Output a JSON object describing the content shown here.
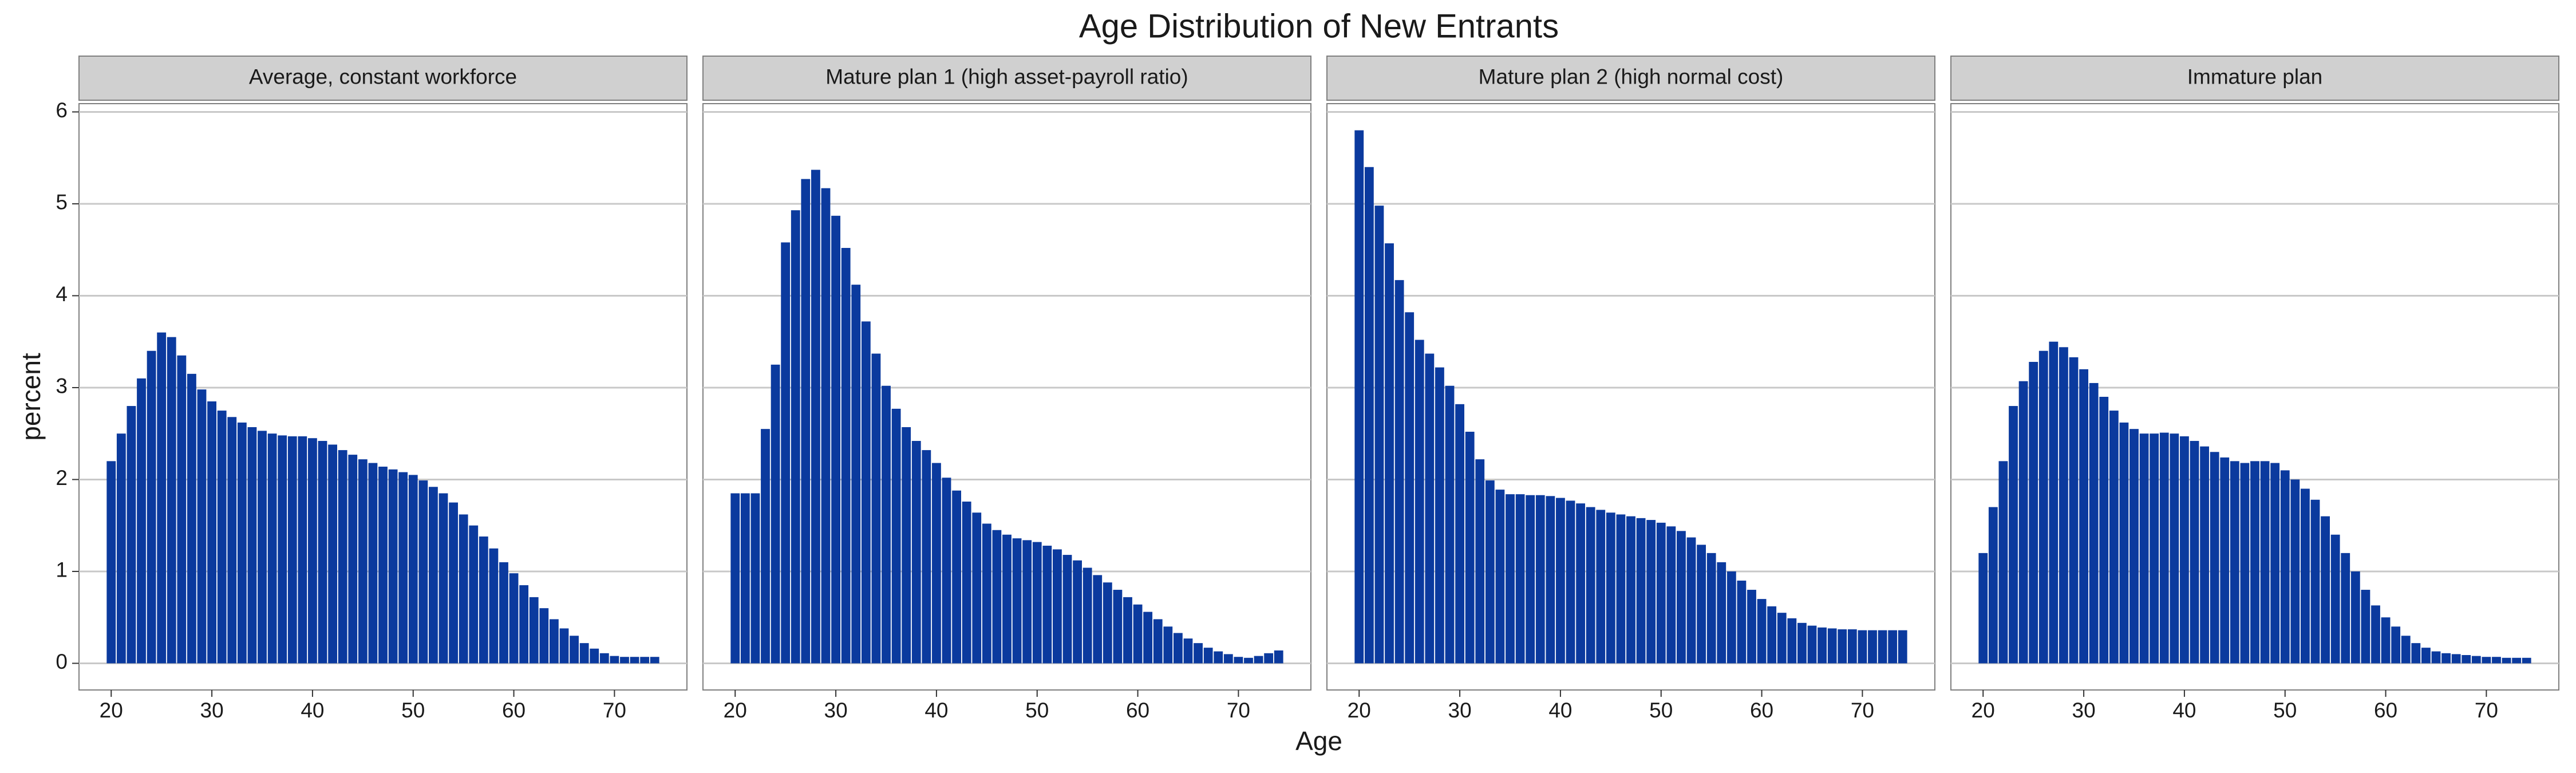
{
  "title": "Age Distribution of New Entrants",
  "xlabel": "Age",
  "ylabel": "percent",
  "chart_data": [
    {
      "type": "bar",
      "title": "Average, constant workforce",
      "color": "#0b3a9e",
      "grid": true,
      "x": [
        20,
        21,
        22,
        23,
        24,
        25,
        26,
        27,
        28,
        29,
        30,
        31,
        32,
        33,
        34,
        35,
        36,
        37,
        38,
        39,
        40,
        41,
        42,
        43,
        44,
        45,
        46,
        47,
        48,
        49,
        50,
        51,
        52,
        53,
        54,
        55,
        56,
        57,
        58,
        59,
        60,
        61,
        62,
        63,
        64,
        65,
        66,
        67,
        68,
        69,
        70,
        71,
        72,
        73,
        74
      ],
      "values": [
        2.2,
        2.5,
        2.8,
        3.1,
        3.4,
        3.6,
        3.55,
        3.35,
        3.15,
        2.98,
        2.85,
        2.75,
        2.68,
        2.62,
        2.57,
        2.53,
        2.5,
        2.48,
        2.47,
        2.47,
        2.45,
        2.42,
        2.38,
        2.32,
        2.27,
        2.22,
        2.18,
        2.14,
        2.11,
        2.08,
        2.05,
        1.99,
        1.92,
        1.85,
        1.75,
        1.62,
        1.5,
        1.38,
        1.25,
        1.1,
        0.98,
        0.85,
        0.72,
        0.6,
        0.48,
        0.38,
        0.3,
        0.22,
        0.16,
        0.11,
        0.08,
        0.07,
        0.07,
        0.07,
        0.07
      ],
      "xlim": [
        16.8,
        77.2
      ],
      "ylim": [
        -0.29,
        6.09
      ],
      "xticks": [
        20,
        30,
        40,
        50,
        60,
        70
      ],
      "yticks": [
        0,
        1,
        2,
        3,
        4,
        5,
        6
      ]
    },
    {
      "type": "bar",
      "title": "Mature plan 1 (high asset-payroll ratio)",
      "color": "#0b3a9e",
      "grid": true,
      "x": [
        20,
        21,
        22,
        23,
        24,
        25,
        26,
        27,
        28,
        29,
        30,
        31,
        32,
        33,
        34,
        35,
        36,
        37,
        38,
        39,
        40,
        41,
        42,
        43,
        44,
        45,
        46,
        47,
        48,
        49,
        50,
        51,
        52,
        53,
        54,
        55,
        56,
        57,
        58,
        59,
        60,
        61,
        62,
        63,
        64,
        65,
        66,
        67,
        68,
        69,
        70,
        71,
        72,
        73,
        74
      ],
      "values": [
        1.85,
        1.85,
        1.85,
        2.55,
        3.25,
        4.58,
        4.93,
        5.27,
        5.37,
        5.17,
        4.87,
        4.52,
        4.12,
        3.72,
        3.37,
        3.02,
        2.77,
        2.57,
        2.42,
        2.32,
        2.18,
        2.02,
        1.88,
        1.76,
        1.64,
        1.52,
        1.45,
        1.4,
        1.36,
        1.34,
        1.32,
        1.28,
        1.24,
        1.18,
        1.12,
        1.04,
        0.96,
        0.88,
        0.8,
        0.72,
        0.64,
        0.56,
        0.48,
        0.4,
        0.33,
        0.27,
        0.22,
        0.17,
        0.13,
        0.1,
        0.07,
        0.06,
        0.08,
        0.11,
        0.14
      ],
      "xlim": [
        16.8,
        77.2
      ],
      "ylim": [
        -0.29,
        6.09
      ],
      "xticks": [
        20,
        30,
        40,
        50,
        60,
        70
      ],
      "yticks": [
        0,
        1,
        2,
        3,
        4,
        5,
        6
      ]
    },
    {
      "type": "bar",
      "title": "Mature plan 2 (high normal cost)",
      "color": "#0b3a9e",
      "grid": true,
      "x": [
        20,
        21,
        22,
        23,
        24,
        25,
        26,
        27,
        28,
        29,
        30,
        31,
        32,
        33,
        34,
        35,
        36,
        37,
        38,
        39,
        40,
        41,
        42,
        43,
        44,
        45,
        46,
        47,
        48,
        49,
        50,
        51,
        52,
        53,
        54,
        55,
        56,
        57,
        58,
        59,
        60,
        61,
        62,
        63,
        64,
        65,
        66,
        67,
        68,
        69,
        70,
        71,
        72,
        73,
        74
      ],
      "values": [
        5.8,
        5.4,
        4.98,
        4.57,
        4.17,
        3.82,
        3.52,
        3.37,
        3.22,
        3.02,
        2.82,
        2.52,
        2.22,
        1.99,
        1.89,
        1.84,
        1.84,
        1.83,
        1.83,
        1.82,
        1.8,
        1.77,
        1.74,
        1.7,
        1.67,
        1.64,
        1.62,
        1.6,
        1.58,
        1.56,
        1.53,
        1.49,
        1.44,
        1.37,
        1.29,
        1.2,
        1.1,
        1.0,
        0.9,
        0.8,
        0.7,
        0.62,
        0.55,
        0.49,
        0.44,
        0.41,
        0.39,
        0.38,
        0.37,
        0.37,
        0.36,
        0.36,
        0.36,
        0.36,
        0.36
      ],
      "xlim": [
        16.8,
        77.2
      ],
      "ylim": [
        -0.29,
        6.09
      ],
      "xticks": [
        20,
        30,
        40,
        50,
        60,
        70
      ],
      "yticks": [
        0,
        1,
        2,
        3,
        4,
        5,
        6
      ]
    },
    {
      "type": "bar",
      "title": "Immature plan",
      "color": "#0b3a9e",
      "grid": true,
      "x": [
        20,
        21,
        22,
        23,
        24,
        25,
        26,
        27,
        28,
        29,
        30,
        31,
        32,
        33,
        34,
        35,
        36,
        37,
        38,
        39,
        40,
        41,
        42,
        43,
        44,
        45,
        46,
        47,
        48,
        49,
        50,
        51,
        52,
        53,
        54,
        55,
        56,
        57,
        58,
        59,
        60,
        61,
        62,
        63,
        64,
        65,
        66,
        67,
        68,
        69,
        70,
        71,
        72,
        73,
        74
      ],
      "values": [
        1.2,
        1.7,
        2.2,
        2.8,
        3.07,
        3.28,
        3.4,
        3.5,
        3.44,
        3.33,
        3.2,
        3.05,
        2.9,
        2.75,
        2.62,
        2.55,
        2.5,
        2.5,
        2.51,
        2.5,
        2.47,
        2.42,
        2.36,
        2.3,
        2.24,
        2.2,
        2.18,
        2.2,
        2.2,
        2.18,
        2.1,
        2.0,
        1.9,
        1.78,
        1.6,
        1.4,
        1.2,
        1.0,
        0.8,
        0.63,
        0.5,
        0.4,
        0.3,
        0.22,
        0.17,
        0.13,
        0.11,
        0.1,
        0.09,
        0.08,
        0.07,
        0.07,
        0.06,
        0.06,
        0.06
      ],
      "xlim": [
        16.8,
        77.2
      ],
      "ylim": [
        -0.29,
        6.09
      ],
      "xticks": [
        20,
        30,
        40,
        50,
        60,
        70
      ],
      "yticks": [
        0,
        1,
        2,
        3,
        4,
        5,
        6
      ]
    }
  ]
}
